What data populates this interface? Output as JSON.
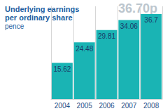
{
  "chart_data": {
    "type": "bar",
    "title": "Underlying earnings per ordinary share",
    "subtitle": "pence",
    "annotations": [
      "36.70p"
    ],
    "categories": [
      "2004",
      "2005",
      "2006",
      "2007",
      "2008"
    ],
    "values": [
      15.62,
      24.48,
      29.81,
      34.06,
      36.7
    ],
    "color": "#1ab4b4",
    "ylim": [
      0,
      40
    ],
    "yticks": [
      0,
      40
    ],
    "grid": false,
    "data_labels": true,
    "tick_labels": "x"
  }
}
